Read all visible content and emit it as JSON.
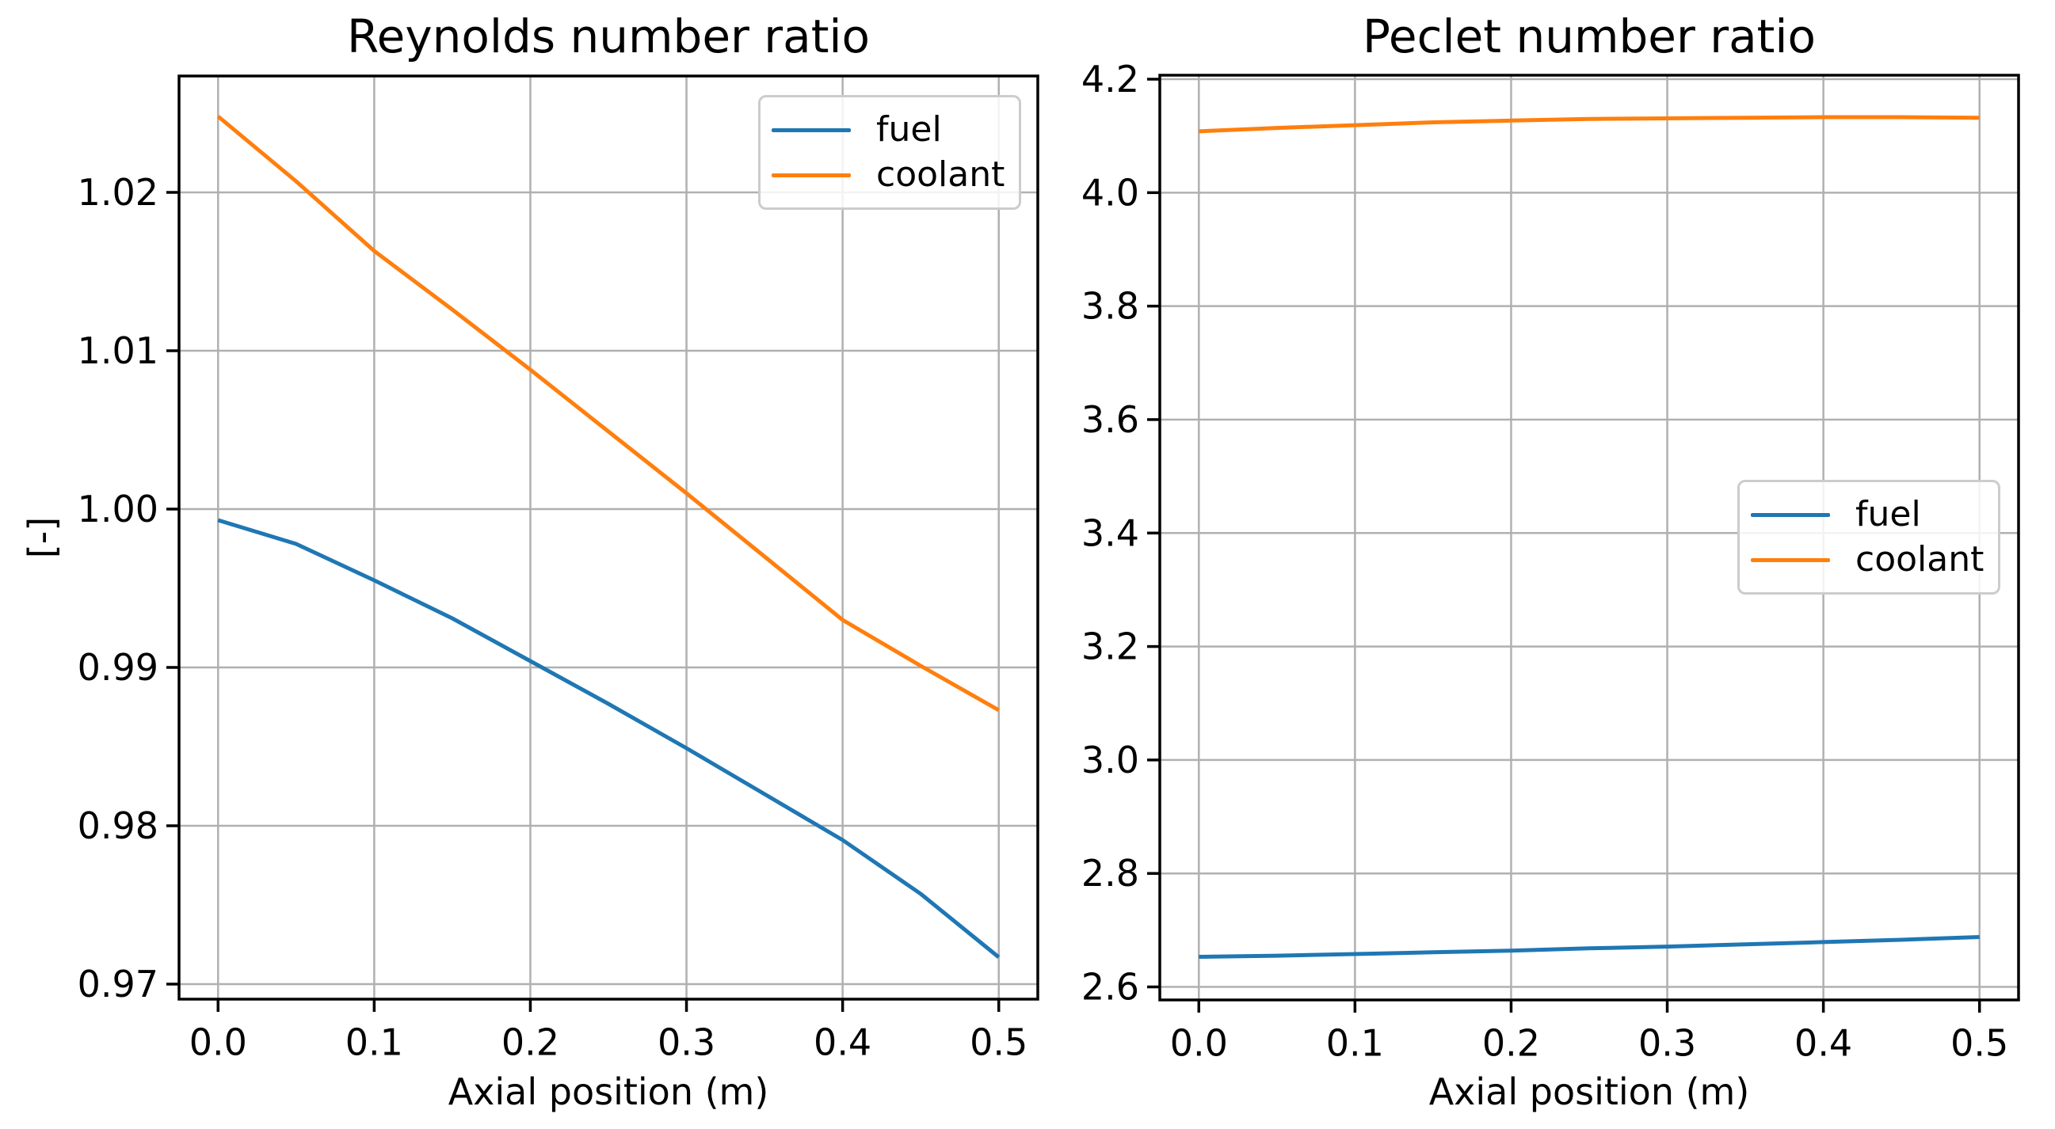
{
  "colors": {
    "fuel": "#1f77b4",
    "coolant": "#ff7f0e",
    "grid": "#b0b0b0",
    "spine": "#000000",
    "legend_border": "#cccccc",
    "background": "#ffffff"
  },
  "chart_data": [
    {
      "type": "line",
      "title": "Reynolds number ratio",
      "xlabel": "Axial position (m)",
      "ylabel": "[-]",
      "grid": true,
      "x": [
        0,
        0.05,
        0.1,
        0.15,
        0.2,
        0.25,
        0.3,
        0.35,
        0.4,
        0.45,
        0.5
      ],
      "series": [
        {
          "name": "fuel",
          "color_key": "fuel",
          "values": [
            0.9993,
            0.9978,
            0.9955,
            0.9931,
            0.9904,
            0.9877,
            0.9849,
            0.982,
            0.9791,
            0.9757,
            0.9717
          ]
        },
        {
          "name": "coolant",
          "color_key": "coolant",
          "values": [
            1.0248,
            1.0207,
            1.0163,
            1.0126,
            1.0088,
            1.0049,
            1.001,
            0.997,
            0.993,
            0.9901,
            0.9873
          ]
        }
      ],
      "xlim": [
        -0.025,
        0.525
      ],
      "ylim": [
        0.96905,
        1.02735
      ],
      "xticks": [
        0,
        0.1,
        0.2,
        0.3,
        0.4,
        0.5
      ],
      "xtick_labels": [
        "0.0",
        "0.1",
        "0.2",
        "0.3",
        "0.4",
        "0.5"
      ],
      "yticks": [
        0.97,
        0.98,
        0.99,
        1.0,
        1.01,
        1.02
      ],
      "ytick_labels": [
        "0.97",
        "0.98",
        "0.99",
        "1.00",
        "1.01",
        "1.02"
      ],
      "legend": {
        "location": "upper right",
        "entries": [
          "fuel",
          "coolant"
        ]
      }
    },
    {
      "type": "line",
      "title": "Peclet number ratio",
      "xlabel": "Axial position (m)",
      "ylabel": "",
      "grid": true,
      "x": [
        0,
        0.05,
        0.1,
        0.15,
        0.2,
        0.25,
        0.3,
        0.35,
        0.4,
        0.45,
        0.5
      ],
      "series": [
        {
          "name": "fuel",
          "color_key": "fuel",
          "values": [
            2.653,
            2.655,
            2.658,
            2.661,
            2.664,
            2.668,
            2.671,
            2.675,
            2.679,
            2.683,
            2.688
          ]
        },
        {
          "name": "coolant",
          "color_key": "coolant",
          "values": [
            4.108,
            4.114,
            4.119,
            4.124,
            4.127,
            4.13,
            4.131,
            4.132,
            4.133,
            4.133,
            4.132
          ]
        }
      ],
      "xlim": [
        -0.025,
        0.525
      ],
      "ylim": [
        2.577,
        4.207
      ],
      "xticks": [
        0,
        0.1,
        0.2,
        0.3,
        0.4,
        0.5
      ],
      "xtick_labels": [
        "0.0",
        "0.1",
        "0.2",
        "0.3",
        "0.4",
        "0.5"
      ],
      "yticks": [
        2.6,
        2.8,
        3.0,
        3.2,
        3.4,
        3.6,
        3.8,
        4.0,
        4.2
      ],
      "ytick_labels": [
        "2.6",
        "2.8",
        "3.0",
        "3.2",
        "3.4",
        "3.6",
        "3.8",
        "4.0",
        "4.2"
      ],
      "legend": {
        "location": "center right",
        "entries": [
          "fuel",
          "coolant"
        ]
      }
    }
  ]
}
